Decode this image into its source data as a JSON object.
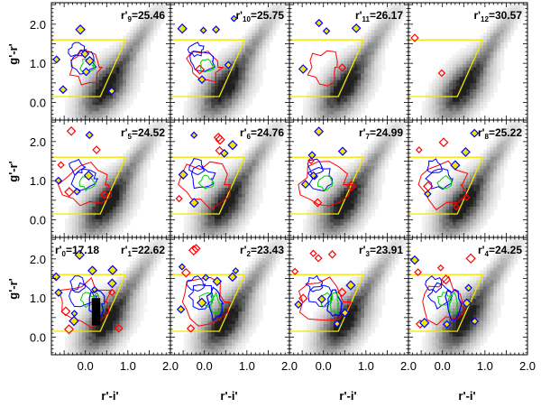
{
  "chart_data": {
    "type": "heatmap",
    "title": "",
    "layout": "3 rows x 4 columns of color-color panels",
    "xlabel": "r'-i'",
    "ylabel": "g'-r'",
    "xlim": [
      -0.8,
      2.0
    ],
    "ylim": [
      -0.45,
      2.55
    ],
    "xticks": [
      0.0,
      1.0,
      2.0
    ],
    "xtick_labels": [
      "0.0",
      "1.0",
      "2.0"
    ],
    "yticks": [
      0.0,
      1.0,
      2.0
    ],
    "ytick_labels": [
      "0.0",
      "1.0",
      "2.0"
    ],
    "selection_polygon": [
      [
        -0.8,
        0.15
      ],
      [
        0.35,
        0.15
      ],
      [
        0.95,
        1.6
      ],
      [
        -0.8,
        1.6
      ]
    ],
    "selection_polygon_color": "#f2e600",
    "contour_colors": {
      "outer": "#ff0000",
      "middle": "#0000ff",
      "inner": "#00cc00"
    },
    "background_field_density": "grayscale 2D histogram of all field galaxies",
    "panels": [
      {
        "row": 0,
        "col": 0,
        "label": "r'",
        "sub": "9",
        "value": "=25.46",
        "density_level": 2
      },
      {
        "row": 0,
        "col": 1,
        "label": "r'",
        "sub": "10",
        "value": "=25.75",
        "density_level": 2
      },
      {
        "row": 0,
        "col": 2,
        "label": "r'",
        "sub": "11",
        "value": "=26.17",
        "density_level": 1
      },
      {
        "row": 0,
        "col": 3,
        "label": "r'",
        "sub": "12",
        "value": "=30.57",
        "density_level": 0
      },
      {
        "row": 1,
        "col": 0,
        "label": "r'",
        "sub": "5",
        "value": "=24.52",
        "density_level": 3
      },
      {
        "row": 1,
        "col": 1,
        "label": "r'",
        "sub": "6",
        "value": "=24.76",
        "density_level": 3
      },
      {
        "row": 1,
        "col": 2,
        "label": "r'",
        "sub": "7",
        "value": "=24.99",
        "density_level": 3
      },
      {
        "row": 1,
        "col": 3,
        "label": "r'",
        "sub": "8",
        "value": "=25.22",
        "density_level": 3
      },
      {
        "row": 2,
        "col": 0,
        "label": "r'",
        "sub": "1",
        "value": "=22.62",
        "density_level": 5,
        "extra_label": {
          "label": "r'",
          "sub": "0",
          "value": "=17.18"
        }
      },
      {
        "row": 2,
        "col": 1,
        "label": "r'",
        "sub": "2",
        "value": "=23.43",
        "density_level": 4
      },
      {
        "row": 2,
        "col": 2,
        "label": "r'",
        "sub": "3",
        "value": "=23.91",
        "density_level": 4
      },
      {
        "row": 2,
        "col": 3,
        "label": "r'",
        "sub": "4",
        "value": "=24.25",
        "density_level": 4
      }
    ]
  }
}
